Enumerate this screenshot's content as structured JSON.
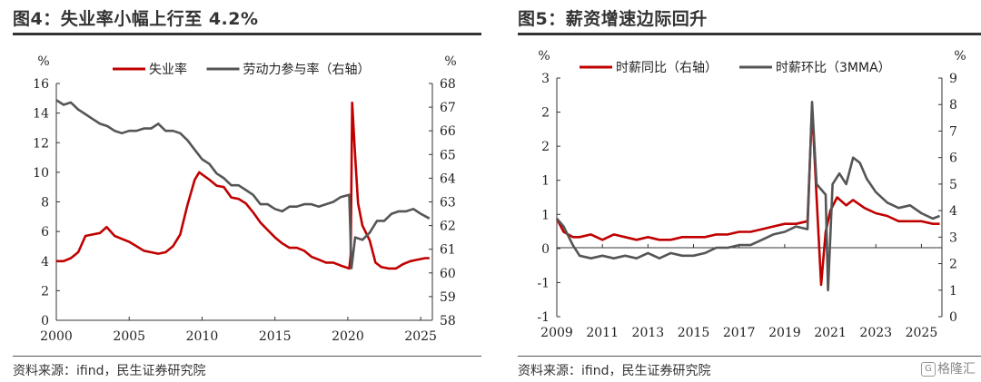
{
  "chart_data": [
    {
      "type": "line",
      "title": "图4：失业率小幅上行至 4.2%",
      "source": "资料来源：ifind，民生证券研究院",
      "left_unit": "%",
      "right_unit": "%",
      "x_ticks": [
        "2000",
        "2005",
        "2010",
        "2015",
        "2020",
        "2025"
      ],
      "y_left_ticks": [
        "0",
        "2",
        "4",
        "6",
        "8",
        "10",
        "12",
        "14",
        "16"
      ],
      "y_right_ticks": [
        "58",
        "59",
        "60",
        "61",
        "62",
        "63",
        "64",
        "65",
        "66",
        "67",
        "68"
      ],
      "xlim": [
        2000,
        2025.8
      ],
      "ylim_left": [
        0,
        16
      ],
      "ylim_right": [
        58,
        68
      ],
      "legend_position": "top",
      "series": [
        {
          "name": "失业率",
          "axis": "left",
          "color": "#c00000",
          "points": [
            [
              2000.0,
              4.0
            ],
            [
              2000.5,
              4.0
            ],
            [
              2001.0,
              4.2
            ],
            [
              2001.5,
              4.6
            ],
            [
              2002.0,
              5.7
            ],
            [
              2002.5,
              5.8
            ],
            [
              2003.0,
              5.9
            ],
            [
              2003.45,
              6.3
            ],
            [
              2004.0,
              5.7
            ],
            [
              2004.5,
              5.5
            ],
            [
              2005.0,
              5.3
            ],
            [
              2005.5,
              5.0
            ],
            [
              2006.0,
              4.7
            ],
            [
              2006.5,
              4.6
            ],
            [
              2007.0,
              4.5
            ],
            [
              2007.5,
              4.6
            ],
            [
              2008.0,
              5.0
            ],
            [
              2008.5,
              5.8
            ],
            [
              2009.0,
              7.8
            ],
            [
              2009.5,
              9.5
            ],
            [
              2009.8,
              10.0
            ],
            [
              2010.5,
              9.5
            ],
            [
              2011.0,
              9.1
            ],
            [
              2011.5,
              9.0
            ],
            [
              2012.0,
              8.3
            ],
            [
              2012.5,
              8.2
            ],
            [
              2013.0,
              7.9
            ],
            [
              2013.5,
              7.3
            ],
            [
              2014.0,
              6.6
            ],
            [
              2014.5,
              6.1
            ],
            [
              2015.0,
              5.6
            ],
            [
              2015.5,
              5.2
            ],
            [
              2016.0,
              4.9
            ],
            [
              2016.5,
              4.9
            ],
            [
              2017.0,
              4.7
            ],
            [
              2017.5,
              4.3
            ],
            [
              2018.0,
              4.1
            ],
            [
              2018.5,
              3.9
            ],
            [
              2019.0,
              3.9
            ],
            [
              2019.5,
              3.7
            ],
            [
              2020.1,
              3.5
            ],
            [
              2020.2,
              4.4
            ],
            [
              2020.3,
              14.7
            ],
            [
              2020.5,
              11.1
            ],
            [
              2020.7,
              7.9
            ],
            [
              2021.0,
              6.4
            ],
            [
              2021.5,
              5.4
            ],
            [
              2021.9,
              3.9
            ],
            [
              2022.3,
              3.6
            ],
            [
              2022.8,
              3.5
            ],
            [
              2023.3,
              3.5
            ],
            [
              2023.8,
              3.8
            ],
            [
              2024.3,
              4.0
            ],
            [
              2024.8,
              4.1
            ],
            [
              2025.3,
              4.2
            ],
            [
              2025.6,
              4.2
            ]
          ]
        },
        {
          "name": "劳动力参与率（右轴）",
          "axis": "right",
          "color": "#555555",
          "points": [
            [
              2000.0,
              67.3
            ],
            [
              2000.5,
              67.1
            ],
            [
              2001.0,
              67.2
            ],
            [
              2001.5,
              66.9
            ],
            [
              2002.0,
              66.7
            ],
            [
              2002.5,
              66.5
            ],
            [
              2003.0,
              66.3
            ],
            [
              2003.5,
              66.2
            ],
            [
              2004.0,
              66.0
            ],
            [
              2004.5,
              65.9
            ],
            [
              2005.0,
              66.0
            ],
            [
              2005.5,
              66.0
            ],
            [
              2006.0,
              66.1
            ],
            [
              2006.5,
              66.1
            ],
            [
              2007.0,
              66.3
            ],
            [
              2007.5,
              66.0
            ],
            [
              2008.0,
              66.0
            ],
            [
              2008.5,
              65.9
            ],
            [
              2009.0,
              65.6
            ],
            [
              2009.5,
              65.2
            ],
            [
              2010.0,
              64.8
            ],
            [
              2010.5,
              64.6
            ],
            [
              2011.0,
              64.2
            ],
            [
              2011.5,
              64.0
            ],
            [
              2012.0,
              63.7
            ],
            [
              2012.5,
              63.7
            ],
            [
              2013.0,
              63.5
            ],
            [
              2013.5,
              63.3
            ],
            [
              2014.0,
              62.9
            ],
            [
              2014.5,
              62.9
            ],
            [
              2015.0,
              62.7
            ],
            [
              2015.5,
              62.6
            ],
            [
              2016.0,
              62.8
            ],
            [
              2016.5,
              62.8
            ],
            [
              2017.0,
              62.9
            ],
            [
              2017.5,
              62.9
            ],
            [
              2018.0,
              62.8
            ],
            [
              2018.5,
              62.9
            ],
            [
              2019.0,
              63.0
            ],
            [
              2019.5,
              63.2
            ],
            [
              2020.1,
              63.3
            ],
            [
              2020.25,
              60.2
            ],
            [
              2020.5,
              61.5
            ],
            [
              2021.0,
              61.4
            ],
            [
              2021.5,
              61.7
            ],
            [
              2022.0,
              62.2
            ],
            [
              2022.5,
              62.2
            ],
            [
              2023.0,
              62.5
            ],
            [
              2023.5,
              62.6
            ],
            [
              2024.0,
              62.6
            ],
            [
              2024.5,
              62.7
            ],
            [
              2025.0,
              62.5
            ],
            [
              2025.6,
              62.3
            ]
          ]
        }
      ]
    },
    {
      "type": "line",
      "title": "图5：薪资增速边际回升",
      "source": "资料来源：ifind，民生证券研究院",
      "left_unit": "%",
      "right_unit": "%",
      "x_ticks": [
        "2009",
        "2011",
        "2013",
        "2015",
        "2017",
        "2019",
        "2021",
        "2023",
        "2025"
      ],
      "y_left_ticks": [
        "-1",
        "-1",
        "0",
        "1",
        "1",
        "2",
        "2",
        "3"
      ],
      "y_right_ticks": [
        "0",
        "1",
        "2",
        "3",
        "4",
        "5",
        "6",
        "7",
        "8",
        "9"
      ],
      "xlim": [
        2009,
        2025.9
      ],
      "ylim_left": [
        -1.5,
        3
      ],
      "ylim_right": [
        0,
        9
      ],
      "legend_position": "top",
      "series": [
        {
          "name": "时薪同比（右轴）",
          "axis": "right",
          "color": "#c00000",
          "points": [
            [
              2009.0,
              3.7
            ],
            [
              2009.3,
              3.2
            ],
            [
              2009.7,
              3.0
            ],
            [
              2010.0,
              3.0
            ],
            [
              2010.5,
              3.1
            ],
            [
              2011.0,
              2.9
            ],
            [
              2011.5,
              3.1
            ],
            [
              2012.0,
              3.0
            ],
            [
              2012.5,
              2.9
            ],
            [
              2013.0,
              3.0
            ],
            [
              2013.5,
              2.9
            ],
            [
              2014.0,
              2.9
            ],
            [
              2014.5,
              3.0
            ],
            [
              2015.0,
              3.0
            ],
            [
              2015.5,
              3.0
            ],
            [
              2016.0,
              3.1
            ],
            [
              2016.5,
              3.1
            ],
            [
              2017.0,
              3.2
            ],
            [
              2017.5,
              3.2
            ],
            [
              2018.0,
              3.3
            ],
            [
              2018.5,
              3.4
            ],
            [
              2019.0,
              3.5
            ],
            [
              2019.5,
              3.5
            ],
            [
              2020.0,
              3.6
            ],
            [
              2020.2,
              7.9
            ],
            [
              2020.4,
              4.5
            ],
            [
              2020.6,
              1.2
            ],
            [
              2020.8,
              3.2
            ],
            [
              2021.0,
              4.0
            ],
            [
              2021.3,
              4.5
            ],
            [
              2021.7,
              4.2
            ],
            [
              2022.0,
              4.4
            ],
            [
              2022.5,
              4.1
            ],
            [
              2023.0,
              3.9
            ],
            [
              2023.5,
              3.8
            ],
            [
              2024.0,
              3.6
            ],
            [
              2024.5,
              3.6
            ],
            [
              2025.0,
              3.6
            ],
            [
              2025.5,
              3.5
            ],
            [
              2025.8,
              3.5
            ]
          ]
        },
        {
          "name": "时薪环比（3MMA）",
          "axis": "right",
          "color": "#555555",
          "points": [
            [
              2009.0,
              3.7
            ],
            [
              2009.3,
              3.4
            ],
            [
              2009.7,
              2.7
            ],
            [
              2010.0,
              2.3
            ],
            [
              2010.5,
              2.2
            ],
            [
              2011.0,
              2.3
            ],
            [
              2011.5,
              2.2
            ],
            [
              2012.0,
              2.3
            ],
            [
              2012.5,
              2.2
            ],
            [
              2013.0,
              2.4
            ],
            [
              2013.5,
              2.2
            ],
            [
              2014.0,
              2.4
            ],
            [
              2014.5,
              2.3
            ],
            [
              2015.0,
              2.3
            ],
            [
              2015.5,
              2.4
            ],
            [
              2016.0,
              2.6
            ],
            [
              2016.5,
              2.6
            ],
            [
              2017.0,
              2.7
            ],
            [
              2017.5,
              2.7
            ],
            [
              2018.0,
              2.9
            ],
            [
              2018.5,
              3.1
            ],
            [
              2019.0,
              3.2
            ],
            [
              2019.5,
              3.4
            ],
            [
              2020.0,
              3.3
            ],
            [
              2020.2,
              8.1
            ],
            [
              2020.4,
              5.0
            ],
            [
              2020.8,
              4.6
            ],
            [
              2020.9,
              1.0
            ],
            [
              2021.1,
              5.0
            ],
            [
              2021.4,
              5.4
            ],
            [
              2021.7,
              5.0
            ],
            [
              2022.0,
              6.0
            ],
            [
              2022.3,
              5.8
            ],
            [
              2022.6,
              5.2
            ],
            [
              2023.0,
              4.7
            ],
            [
              2023.5,
              4.3
            ],
            [
              2024.0,
              4.1
            ],
            [
              2024.5,
              4.2
            ],
            [
              2025.0,
              3.9
            ],
            [
              2025.5,
              3.7
            ],
            [
              2025.8,
              3.8
            ]
          ]
        }
      ]
    }
  ],
  "watermark": "格隆汇"
}
